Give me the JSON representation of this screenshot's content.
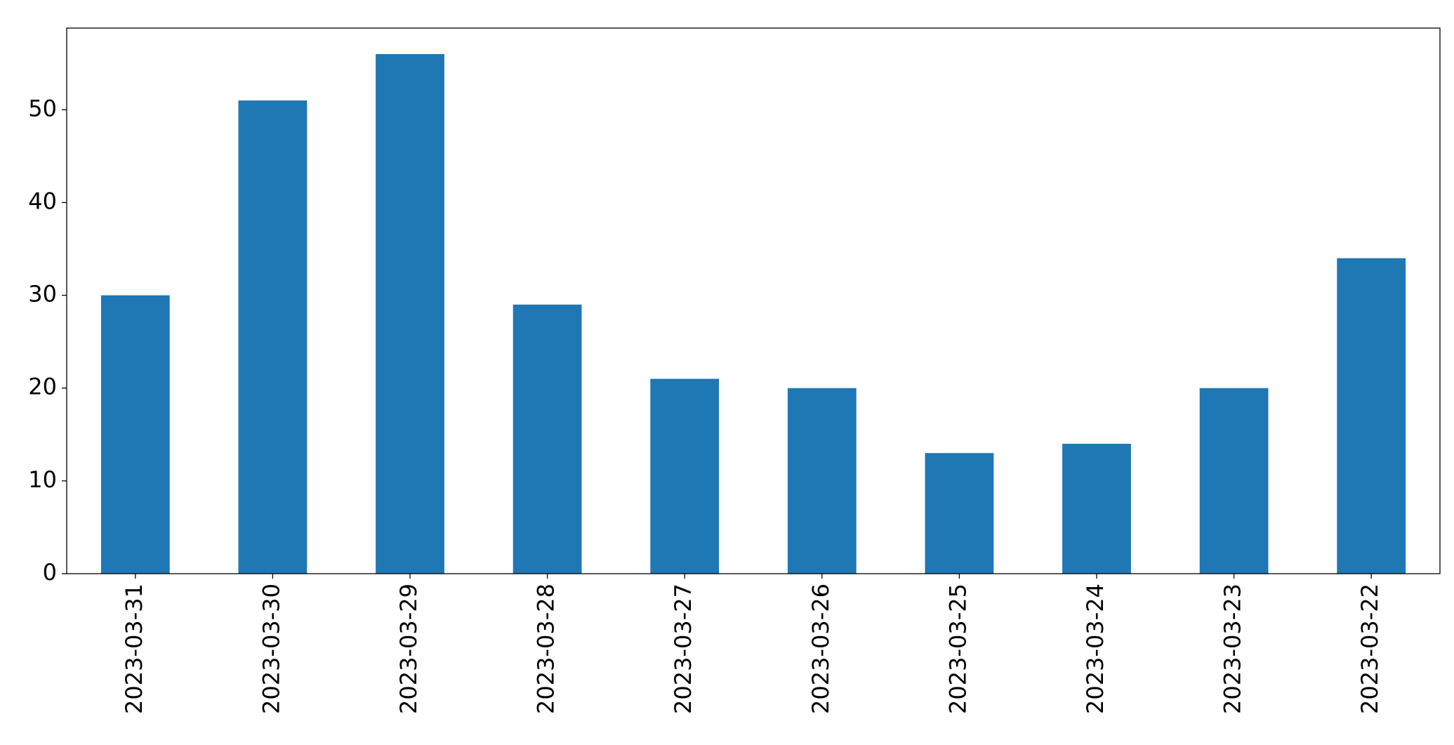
{
  "chart_data": {
    "type": "bar",
    "categories": [
      "2023-03-31",
      "2023-03-30",
      "2023-03-29",
      "2023-03-28",
      "2023-03-27",
      "2023-03-26",
      "2023-03-25",
      "2023-03-24",
      "2023-03-23",
      "2023-03-22"
    ],
    "values": [
      30,
      51,
      56,
      29,
      21,
      20,
      13,
      14,
      20,
      34
    ],
    "color": "#1f77b4",
    "ylim": [
      0,
      58.8
    ],
    "yticks": [
      0,
      10,
      20,
      30,
      40,
      50
    ],
    "grid": false
  }
}
